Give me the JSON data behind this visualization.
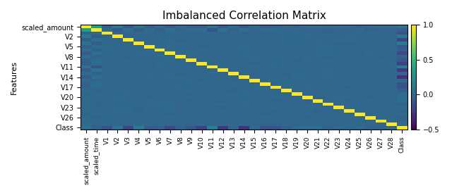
{
  "title": "Imbalanced Correlation Matrix",
  "features": [
    "scaled_amount",
    "scaled_time",
    "V1",
    "V2",
    "V3",
    "V4",
    "V5",
    "V6",
    "V7",
    "V8",
    "V9",
    "V10",
    "V11",
    "V12",
    "V13",
    "V14",
    "V15",
    "V16",
    "V17",
    "V18",
    "V19",
    "V20",
    "V21",
    "V22",
    "V23",
    "V24",
    "V25",
    "V26",
    "V27",
    "V28",
    "Class"
  ],
  "ytick_labels": [
    "scaled_amount",
    "V2",
    "V5",
    "V8",
    "V11",
    "V14",
    "V17",
    "V20",
    "V23",
    "V26",
    "Class"
  ],
  "ytick_positions": [
    0,
    3,
    6,
    9,
    12,
    15,
    18,
    21,
    24,
    27,
    30
  ],
  "ylabel": "Features",
  "colormap": "viridis",
  "vmin": -0.5,
  "vmax": 1.0,
  "figsize": [
    6.4,
    2.77
  ],
  "dpi": 100,
  "title_fontsize": 11,
  "axis_label_fontsize": 8,
  "tick_fontsize": 7,
  "colorbar_ticks": [
    -0.5,
    0.0,
    0.5,
    1.0
  ],
  "col0_corrs": [
    1.0,
    0.35,
    -0.04,
    0.12,
    -0.06,
    0.08,
    -0.05,
    0.04,
    -0.07,
    0.03,
    -0.04,
    -0.05,
    0.07,
    -0.07,
    0.03,
    -0.07,
    0.02,
    -0.04,
    -0.03,
    0.02,
    -0.01,
    0.01,
    0.01,
    0.02,
    0.01,
    0.01,
    -0.01,
    0.02,
    0.01,
    0.01,
    0.06
  ],
  "col1_corrs": [
    0.35,
    1.0,
    0.02,
    -0.08,
    0.05,
    -0.06,
    0.03,
    -0.04,
    0.05,
    -0.03,
    0.03,
    0.04,
    -0.13,
    0.06,
    -0.02,
    0.05,
    -0.01,
    0.04,
    0.03,
    -0.01,
    0.01,
    -0.01,
    -0.01,
    -0.02,
    -0.01,
    -0.01,
    0.01,
    -0.02,
    -0.01,
    -0.01,
    -0.04
  ],
  "class_corrs": [
    0.06,
    -0.04,
    -0.13,
    0.09,
    -0.2,
    0.13,
    -0.09,
    -0.05,
    -0.18,
    -0.02,
    -0.1,
    -0.22,
    0.15,
    -0.26,
    -0.01,
    -0.3,
    0.02,
    -0.13,
    -0.12,
    -0.04,
    0.03,
    0.04,
    0.04,
    -0.02,
    0.01,
    -0.01,
    0.01,
    -0.02,
    -0.02,
    0.01,
    1.0
  ]
}
